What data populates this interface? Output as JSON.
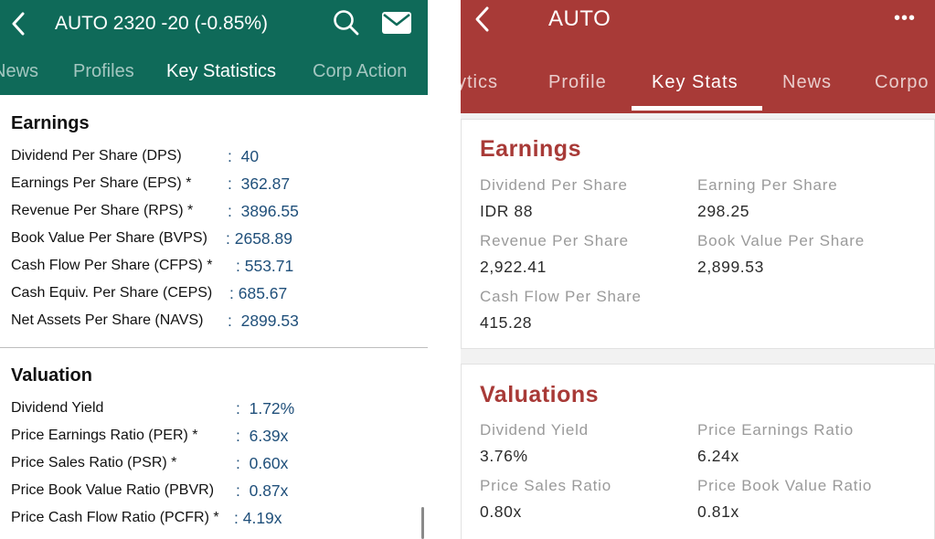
{
  "left": {
    "header": {
      "title": "AUTO  2320 -20 (-0.85%)"
    },
    "tabs": [
      {
        "label": "News"
      },
      {
        "label": "Profiles"
      },
      {
        "label": "Key Statistics"
      },
      {
        "label": "Corp Action"
      }
    ],
    "earnings": {
      "title": "Earnings",
      "rows": [
        {
          "label": "Dividend Per Share (DPS)",
          "value": "40"
        },
        {
          "label": "Earnings Per Share (EPS) *",
          "value": "362.87"
        },
        {
          "label": "Revenue Per Share (RPS) *",
          "value": "3896.55"
        },
        {
          "label": "Book Value Per Share (BVPS)",
          "value": "2658.89"
        },
        {
          "label": "Cash Flow Per Share (CFPS) *",
          "value": "553.71"
        },
        {
          "label": "Cash Equiv. Per Share (CEPS)",
          "value": "685.67"
        },
        {
          "label": "Net Assets Per Share (NAVS)",
          "value": "2899.53"
        }
      ]
    },
    "valuation": {
      "title": "Valuation",
      "rows": [
        {
          "label": "Dividend Yield",
          "value": "1.72%"
        },
        {
          "label": "Price Earnings Ratio (PER) *",
          "value": "6.39x"
        },
        {
          "label": "Price Sales Ratio (PSR) *",
          "value": "0.60x"
        },
        {
          "label": "Price Book Value Ratio (PBVR)",
          "value": "0.87x"
        },
        {
          "label": "Price Cash Flow Ratio (PCFR) *",
          "value": "4.19x"
        }
      ]
    },
    "colors": {
      "header": "#0f6a59",
      "value": "#1f4f7a"
    }
  },
  "right": {
    "header": {
      "title": "AUTO",
      "more": "•••"
    },
    "tabs": [
      {
        "label": "ytics"
      },
      {
        "label": "Profile"
      },
      {
        "label": "Key Stats"
      },
      {
        "label": "News"
      },
      {
        "label": "Corpo"
      }
    ],
    "earnings": {
      "title": "Earnings",
      "items": [
        {
          "label": "Dividend Per Share",
          "value": "IDR 88"
        },
        {
          "label": "Earning Per Share",
          "value": "298.25"
        },
        {
          "label": "Revenue Per Share",
          "value": "2,922.41"
        },
        {
          "label": "Book Value Per Share",
          "value": "2,899.53"
        },
        {
          "label": "Cash Flow Per Share",
          "value": "415.28"
        }
      ]
    },
    "valuations": {
      "title": "Valuations",
      "items": [
        {
          "label": "Dividend Yield",
          "value": "3.76%"
        },
        {
          "label": "Price Earnings Ratio",
          "value": "6.24x"
        },
        {
          "label": "Price Sales Ratio",
          "value": "0.80x"
        },
        {
          "label": "Price Book Value Ratio",
          "value": "0.81x"
        }
      ]
    },
    "colors": {
      "header": "#a83a37",
      "accent": "#a83a37"
    }
  }
}
